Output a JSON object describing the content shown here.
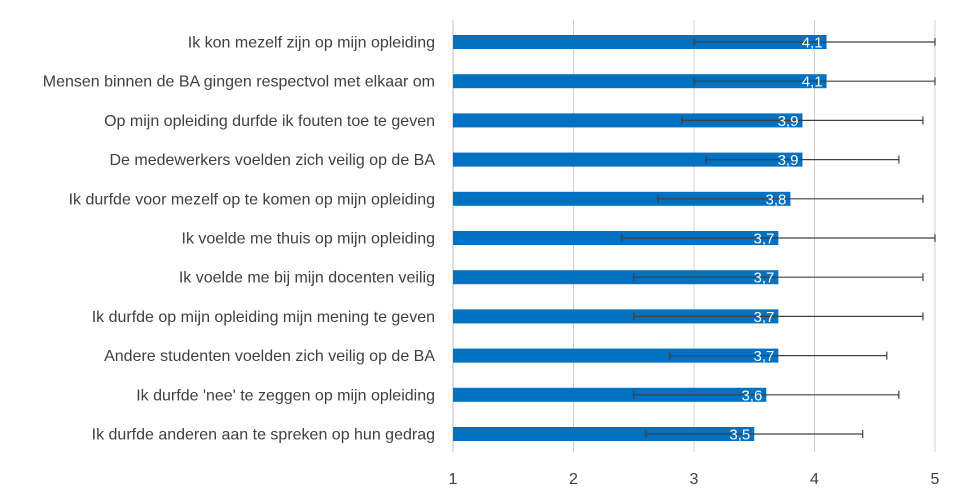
{
  "chart_data": {
    "type": "bar",
    "orientation": "horizontal",
    "title": "",
    "xlabel": "",
    "ylabel": "",
    "xlim": [
      1,
      5
    ],
    "ticks": [
      "1",
      "2",
      "3",
      "4",
      "5"
    ],
    "grid": true,
    "bar_color": "#0070C0",
    "error_color": "#404040",
    "categories": [
      "Ik kon mezelf zijn op mijn opleiding",
      "Mensen binnen de BA gingen respectvol met elkaar om",
      "Op mijn opleiding durfde ik fouten toe te geven",
      "De medewerkers voelden zich veilig op de BA",
      "Ik durfde voor mezelf op te komen op mijn opleiding",
      "Ik voelde me thuis op mijn opleiding ",
      "Ik voelde me bij mijn docenten veilig",
      "Ik durfde op mijn opleiding mijn mening te geven",
      "Andere studenten voelden zich veilig op de BA",
      "Ik durfde 'nee' te zeggen op mijn opleiding",
      "Ik durfde anderen aan te spreken op hun gedrag"
    ],
    "values": [
      4.1,
      4.1,
      3.9,
      3.9,
      3.8,
      3.7,
      3.7,
      3.7,
      3.7,
      3.6,
      3.5
    ],
    "data_labels": [
      "4,1",
      "4,1",
      "3,9",
      "3,9",
      "3,8",
      "3,7",
      "3,7",
      "3,7",
      "3,7",
      "3,6",
      "3,5"
    ],
    "error_low": [
      3.0,
      3.0,
      2.9,
      3.1,
      2.7,
      2.4,
      2.5,
      2.5,
      2.8,
      2.5,
      2.6
    ],
    "error_high": [
      5.0,
      5.0,
      4.9,
      4.7,
      4.9,
      5.0,
      4.9,
      4.9,
      4.6,
      4.7,
      4.4
    ]
  }
}
